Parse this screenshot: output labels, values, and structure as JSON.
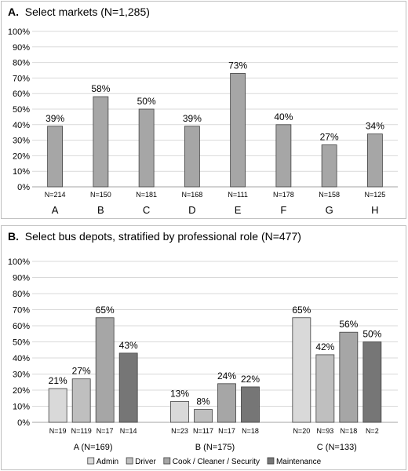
{
  "chart_data": [
    {
      "type": "bar",
      "panel_letter": "A.",
      "title": "Select markets (N=1,285)",
      "categories": [
        "A",
        "B",
        "C",
        "D",
        "E",
        "F",
        "G",
        "H"
      ],
      "values": [
        39,
        58,
        50,
        39,
        73,
        40,
        27,
        34
      ],
      "value_labels": [
        "39%",
        "58%",
        "50%",
        "39%",
        "73%",
        "40%",
        "27%",
        "34%"
      ],
      "n_labels": [
        "N=214",
        "N=150",
        "N=181",
        "N=168",
        "N=111",
        "N=178",
        "N=158",
        "N=125"
      ],
      "y_ticks": [
        "0%",
        "10%",
        "20%",
        "30%",
        "40%",
        "50%",
        "60%",
        "70%",
        "80%",
        "90%",
        "100%"
      ],
      "ylim": [
        0,
        100
      ],
      "grid": true,
      "bar_color": "#a6a6a6"
    },
    {
      "type": "bar",
      "panel_letter": "B.",
      "title": "Select bus depots, stratified by professional role (N=477)",
      "categories": [
        "A (N=169)",
        "B (N=175)",
        "C (N=133)"
      ],
      "series": [
        {
          "name": "Admin",
          "color": "#d9d9d9",
          "values": [
            21,
            13,
            65
          ],
          "value_labels": [
            "21%",
            "13%",
            "65%"
          ],
          "n_labels": [
            "N=19",
            "N=23",
            "N=20"
          ]
        },
        {
          "name": "Driver",
          "color": "#bfbfbf",
          "values": [
            27,
            8,
            42
          ],
          "value_labels": [
            "27%",
            "8%",
            "42%"
          ],
          "n_labels": [
            "N=119",
            "N=117",
            "N=93"
          ]
        },
        {
          "name": "Cook / Cleaner / Security",
          "color": "#a6a6a6",
          "values": [
            65,
            24,
            56
          ],
          "value_labels": [
            "65%",
            "24%",
            "56%"
          ],
          "n_labels": [
            "N=17",
            "N=17",
            "N=18"
          ]
        },
        {
          "name": "Maintenance",
          "color": "#767676",
          "values": [
            43,
            22,
            50
          ],
          "value_labels": [
            "43%",
            "22%",
            "50%"
          ],
          "n_labels": [
            "N=14",
            "N=18",
            "N=2"
          ]
        }
      ],
      "y_ticks": [
        "0%",
        "10%",
        "20%",
        "30%",
        "40%",
        "50%",
        "60%",
        "70%",
        "80%",
        "90%",
        "100%"
      ],
      "ylim": [
        0,
        100
      ],
      "grid": true,
      "legend_position": "bottom"
    }
  ]
}
